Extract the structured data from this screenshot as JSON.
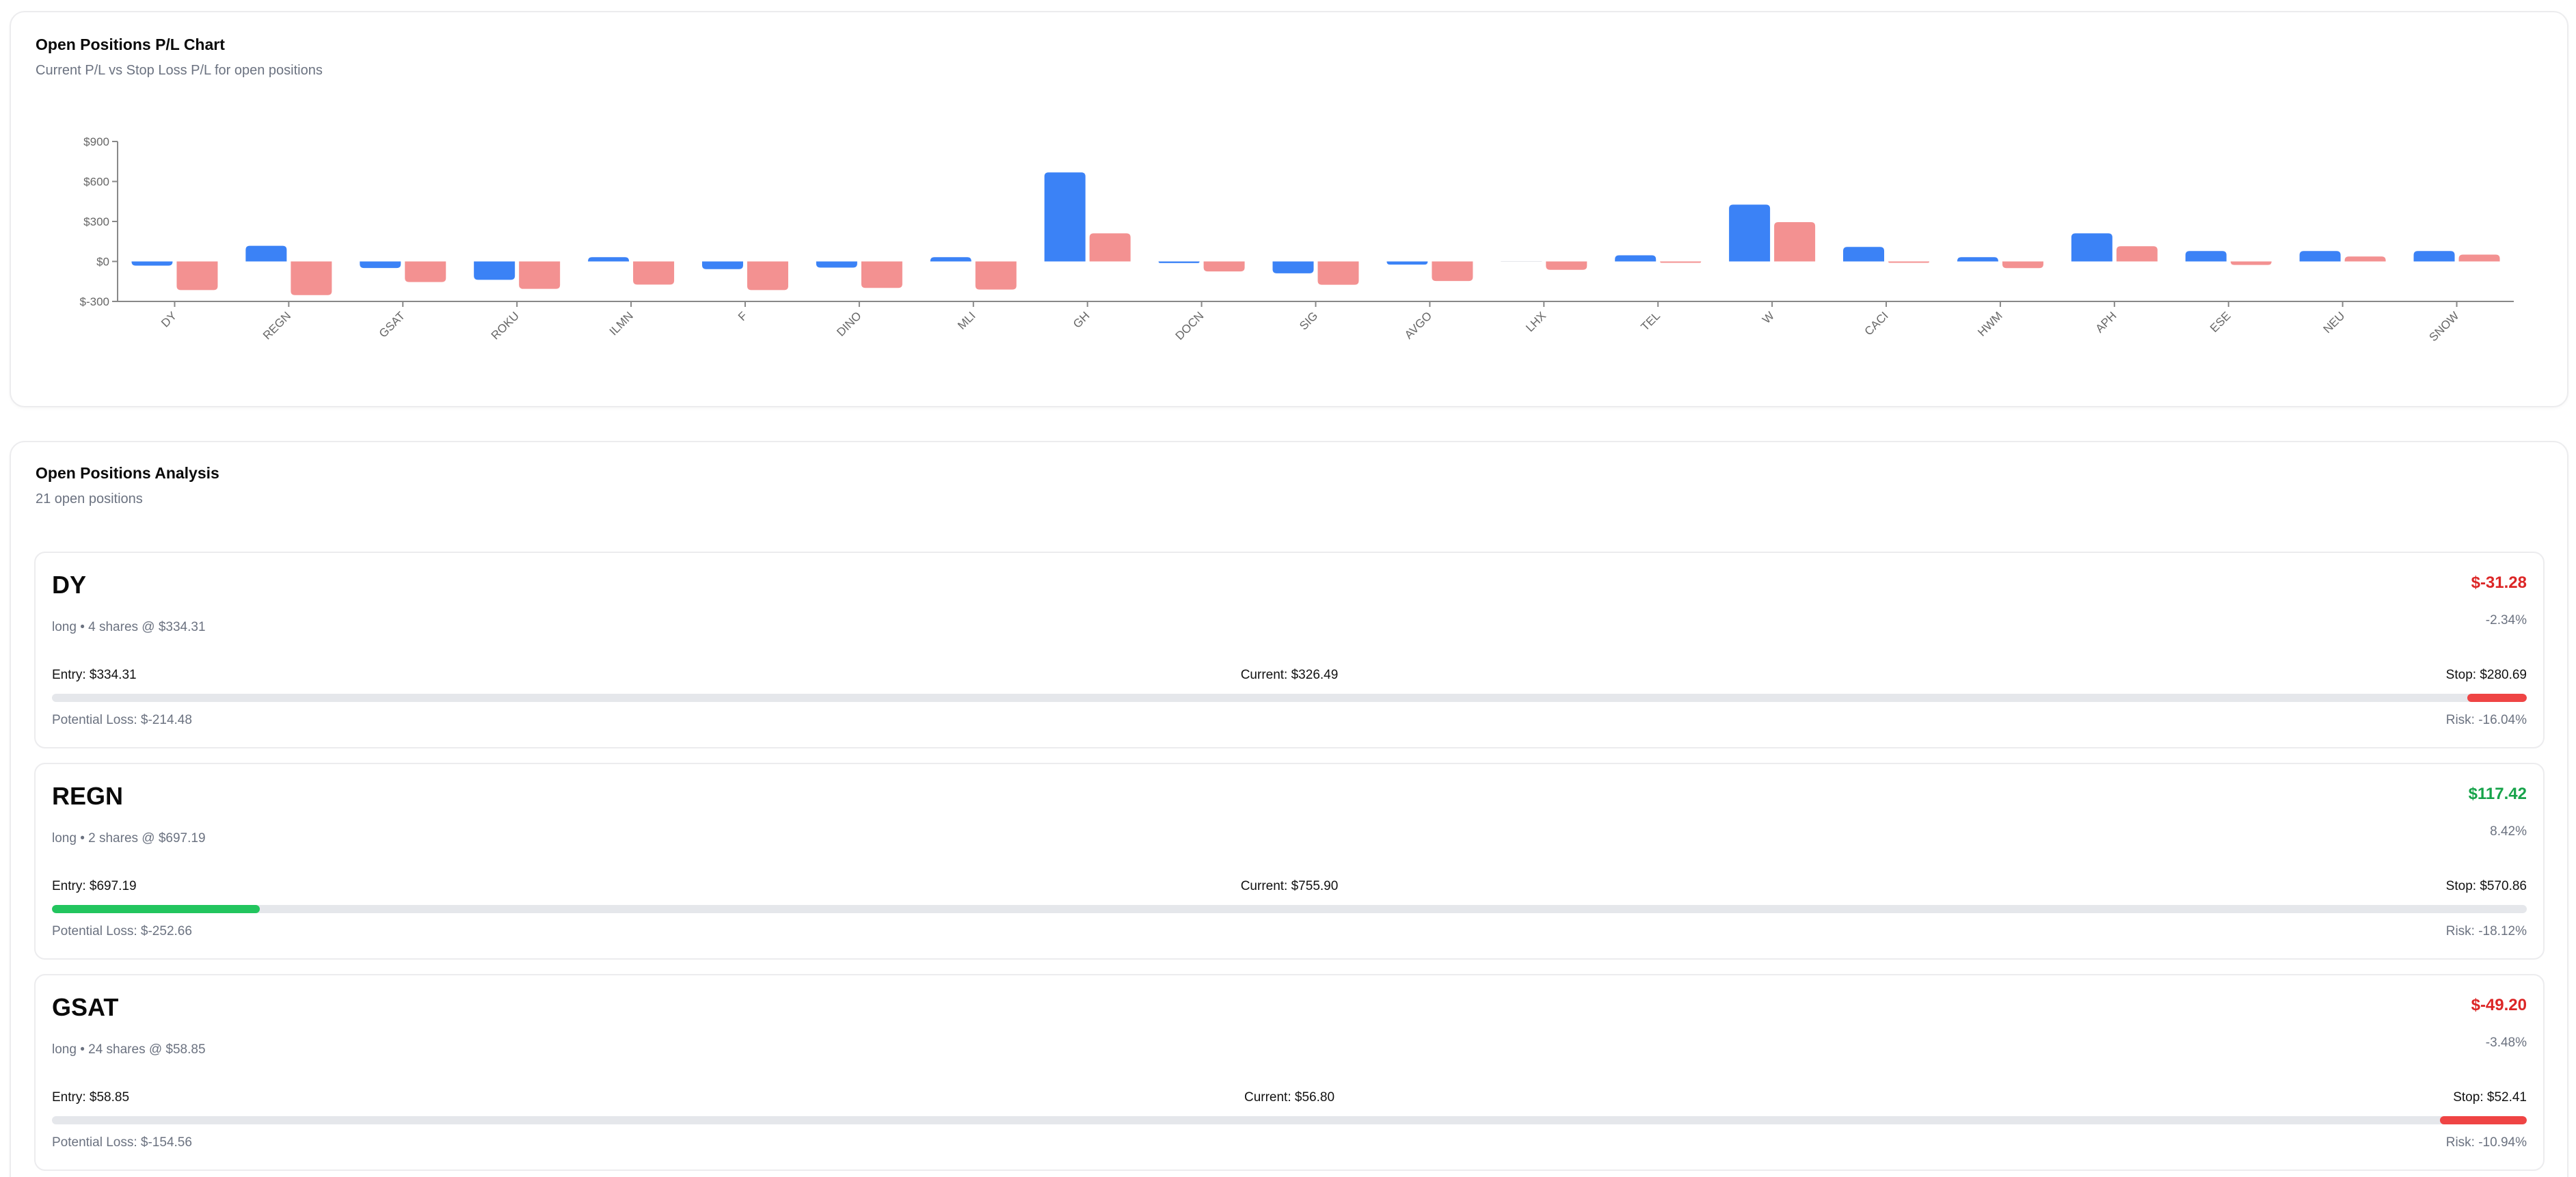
{
  "chart_card": {
    "title": "Open Positions P/L Chart",
    "subtitle": "Current P/L vs Stop Loss P/L for open positions"
  },
  "positions_card": {
    "title": "Open Positions Analysis",
    "subtitle": "21 open positions"
  },
  "colors": {
    "current_pl": "#3b82f6",
    "stop_pl": "#f39191",
    "negative_text": "#dc2626",
    "positive_text": "#16a34a",
    "progress_loss": "#ef4444",
    "progress_gain": "#22c55e",
    "progress_track": "#e5e7eb"
  },
  "chart_data": {
    "type": "bar",
    "title": "Open Positions P/L Chart",
    "subtitle": "Current P/L vs Stop Loss P/L for open positions",
    "xlabel": "",
    "ylabel": "",
    "ylim": [
      -300,
      900
    ],
    "yticks": [
      -300,
      0,
      300,
      600,
      900
    ],
    "ytick_labels": [
      "$-300",
      "$0",
      "$300",
      "$600",
      "$900"
    ],
    "grid": false,
    "legend": "none",
    "categories": [
      "DY",
      "REGN",
      "GSAT",
      "ROKU",
      "ILMN",
      "F",
      "DINO",
      "MLI",
      "GH",
      "DOCN",
      "SIG",
      "AVGO",
      "LHX",
      "TEL",
      "W",
      "CACI",
      "HWM",
      "APH",
      "ESE",
      "NEU",
      "SNOW"
    ],
    "series": [
      {
        "name": "Current P/L",
        "color": "#3b82f6",
        "values": [
          -31.28,
          117.42,
          -49.2,
          -138,
          32,
          -58,
          -46,
          32,
          668,
          -12,
          -89,
          -24,
          0,
          46,
          426,
          109,
          32,
          211,
          78,
          78,
          78
        ]
      },
      {
        "name": "Stop Loss P/L",
        "color": "#f39191",
        "values": [
          -214.48,
          -252.66,
          -154.56,
          -206,
          -174,
          -215,
          -199,
          -211,
          211,
          -75,
          -175,
          -147,
          -63,
          -10,
          295,
          -10,
          -50,
          114,
          -26,
          37,
          51
        ]
      }
    ]
  },
  "positions": [
    {
      "symbol": "DY",
      "meta": "long • 4 shares @ $334.31",
      "pl": "$-31.28",
      "pl_sign": "neg",
      "pct": "-2.34%",
      "entry": "Entry: $334.31",
      "current": "Current: $326.49",
      "stop": "Stop: $280.69",
      "potential_loss": "Potential Loss: $-214.48",
      "risk": "Risk: -16.04%",
      "bar": {
        "side": "right",
        "width_pct": 2.4,
        "color": "#ef4444"
      }
    },
    {
      "symbol": "REGN",
      "meta": "long • 2 shares @ $697.19",
      "pl": "$117.42",
      "pl_sign": "pos",
      "pct": "8.42%",
      "entry": "Entry: $697.19",
      "current": "Current: $755.90",
      "stop": "Stop: $570.86",
      "potential_loss": "Potential Loss: $-252.66",
      "risk": "Risk: -18.12%",
      "bar": {
        "side": "left",
        "width_pct": 8.4,
        "color": "#22c55e"
      }
    },
    {
      "symbol": "GSAT",
      "meta": "long • 24 shares @ $58.85",
      "pl": "$-49.20",
      "pl_sign": "neg",
      "pct": "-3.48%",
      "entry": "Entry: $58.85",
      "current": "Current: $56.80",
      "stop": "Stop: $52.41",
      "potential_loss": "Potential Loss: $-154.56",
      "risk": "Risk: -10.94%",
      "bar": {
        "side": "right",
        "width_pct": 3.5,
        "color": "#ef4444"
      }
    }
  ]
}
